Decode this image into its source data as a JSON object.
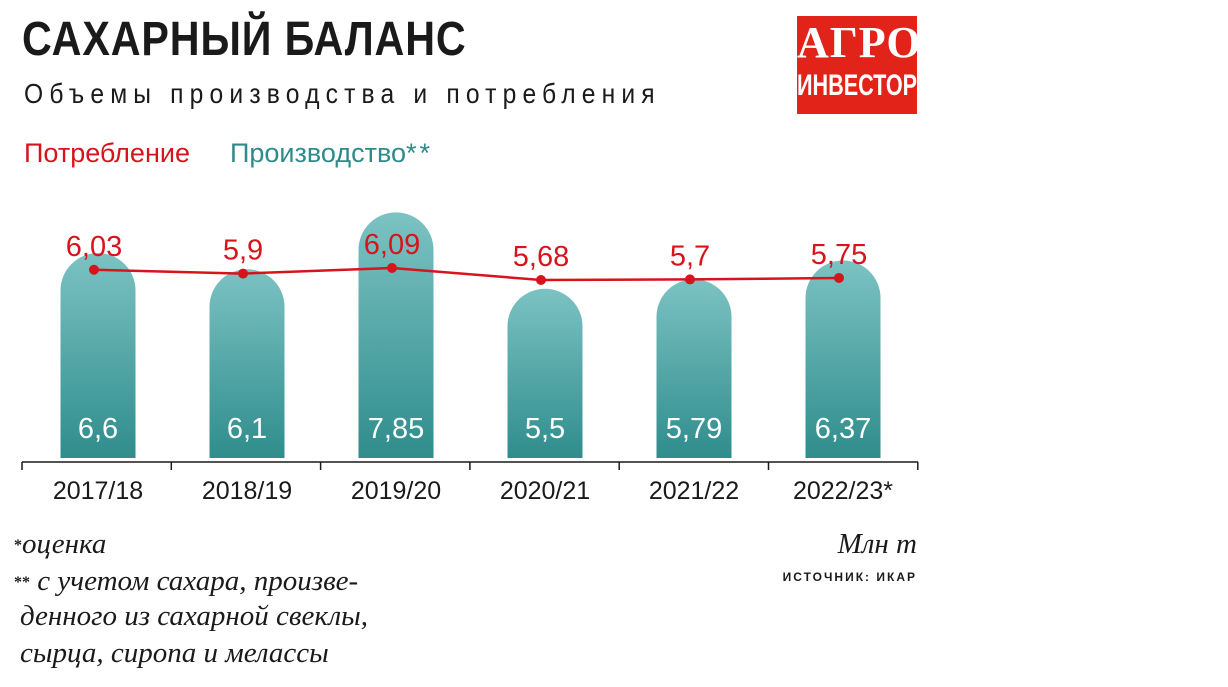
{
  "header": {
    "title": "САХАРНЫЙ БАЛАНС",
    "subtitle": "Объемы производства и потребления"
  },
  "logo": {
    "line1": "АГРО",
    "line2": "ИНВЕСТОР"
  },
  "colors": {
    "consumption": "#d7141c",
    "production_top": "#7cc2c3",
    "production_bottom": "#2f8d8c",
    "logo_bg": "#e2231a"
  },
  "chart_data": {
    "type": "bar",
    "categories": [
      "2017/18",
      "2018/19",
      "2019/20",
      "2020/21",
      "2021/22",
      "2022/23*"
    ],
    "series": [
      {
        "name": "Производство**",
        "type": "bar",
        "values": [
          6.6,
          6.1,
          7.85,
          5.5,
          5.79,
          6.37
        ]
      },
      {
        "name": "Потребление",
        "type": "line",
        "values": [
          6.03,
          5.9,
          6.09,
          5.68,
          5.7,
          5.75
        ]
      }
    ],
    "legend": [
      "Потребление",
      "Производство**"
    ],
    "legend_position": "top-left",
    "value_labels": {
      "production": [
        "6,6",
        "6,1",
        "7,85",
        "5,5",
        "5,79",
        "6,37"
      ],
      "consumption": [
        "6,03",
        "5,9",
        "6,09",
        "5,68",
        "5,7",
        "5,75"
      ]
    },
    "unit": "Млн т",
    "grid": false
  },
  "legend": {
    "consumption": "Потребление",
    "production": "Производство",
    "production_marker": "**"
  },
  "notes": {
    "note1_mark": "*",
    "note1": "оценка",
    "note2_mark": "**",
    "note2_lines": [
      "с учетом сахара, произве-",
      "денного из сахарной свеклы,",
      "сырца, сиропа и мелассы"
    ]
  },
  "unit": "Млн т",
  "source": "ИСТОЧНИК: ИКАР"
}
